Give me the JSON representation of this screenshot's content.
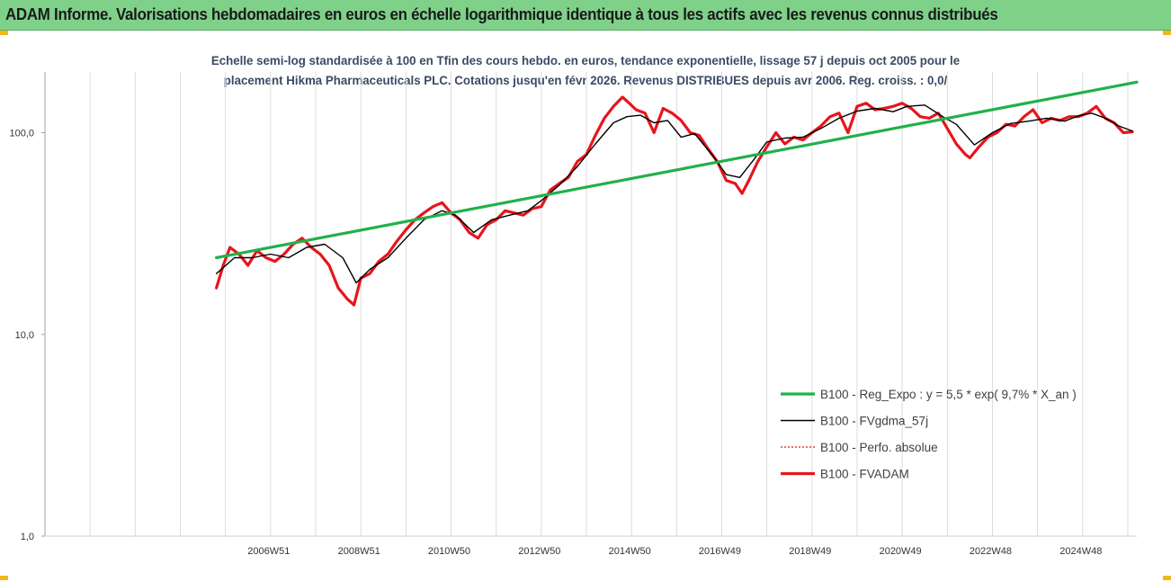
{
  "banner": {
    "title": "ADAM Informe. Valorisations hebdomadaires en euros en échelle logarithmique identique à tous les actifs avec les revenus connus distribués"
  },
  "colors": {
    "banner_bg": "#7fd18a",
    "accent_corner": "#f2b81a",
    "subtitle_text": "#3b4a66"
  },
  "chart_data": {
    "type": "line",
    "title_line1": "Echelle semi-log standardisée à 100 en Tfin des cours hebdo. en euros, tendance exponentielle, lissage 57 j depuis oct 2005 pour le",
    "title_line2": "placement Hikma Pharmaceuticals PLC. Cotations jusqu'en févr 2026.  Revenus DISTRIBUES depuis avr 2006. Reg. croiss. : 0,0/",
    "y_scale": "log",
    "ylim": [
      1,
      200
    ],
    "y_ticks": [
      "1,0",
      "10,0",
      "100,0"
    ],
    "y_tick_values": [
      1,
      10,
      100
    ],
    "x_range": [
      2002.0,
      2026.2
    ],
    "x_ticks": [
      "2006W51",
      "2008W51",
      "2010W50",
      "2012W50",
      "2014W50",
      "2016W49",
      "2018W49",
      "2020W49",
      "2022W48",
      "2024W48"
    ],
    "x_tick_values": [
      2006.96,
      2008.96,
      2010.96,
      2012.96,
      2014.96,
      2016.96,
      2018.96,
      2020.96,
      2022.96,
      2024.96
    ],
    "grid_vertical": true,
    "legend_position": "right",
    "series": [
      {
        "name": "B100 - Reg_Expo : y = 5,5 * exp( 9,7% *  X_an )",
        "color": "#22b04a",
        "style": "thick",
        "x": [
          2005.8,
          2026.2
        ],
        "y": [
          24,
          178
        ]
      },
      {
        "name": "B100 - FVgdma_57j",
        "color": "#000000",
        "style": "thin",
        "x": [
          2005.8,
          2006.2,
          2006.6,
          2007.0,
          2007.4,
          2007.8,
          2008.2,
          2008.6,
          2008.9,
          2009.2,
          2009.6,
          2010.0,
          2010.4,
          2010.8,
          2011.1,
          2011.5,
          2011.9,
          2012.3,
          2012.7,
          2013.0,
          2013.4,
          2013.8,
          2014.2,
          2014.6,
          2014.9,
          2015.2,
          2015.5,
          2015.8,
          2016.1,
          2016.4,
          2016.8,
          2017.1,
          2017.4,
          2017.7,
          2018.0,
          2018.4,
          2018.8,
          2019.2,
          2019.6,
          2020.0,
          2020.4,
          2020.8,
          2021.1,
          2021.5,
          2021.9,
          2022.2,
          2022.6,
          2023.0,
          2023.4,
          2023.8,
          2024.2,
          2024.6,
          2024.9,
          2025.2,
          2025.5,
          2025.8,
          2026.1
        ],
        "y": [
          20,
          24,
          24,
          25,
          24,
          27,
          28,
          24,
          18,
          21,
          24,
          30,
          37,
          41,
          39,
          32,
          37,
          39,
          41,
          46,
          55,
          68,
          88,
          112,
          120,
          122,
          112,
          115,
          95,
          99,
          77,
          62,
          60,
          73,
          90,
          94,
          95,
          105,
          118,
          128,
          132,
          127,
          135,
          137,
          120,
          110,
          87,
          100,
          111,
          114,
          118,
          114,
          121,
          125,
          118,
          108,
          102
        ]
      },
      {
        "name": "B100 - Perfo. absolue",
        "color": "#e0141c",
        "style": "dotted",
        "x": [],
        "y": []
      },
      {
        "name": "B100 - FVADAM",
        "color": "#e8141c",
        "style": "thick",
        "x": [
          2005.8,
          2005.95,
          2006.1,
          2006.3,
          2006.5,
          2006.7,
          2006.9,
          2007.1,
          2007.3,
          2007.5,
          2007.7,
          2007.9,
          2008.1,
          2008.3,
          2008.5,
          2008.7,
          2008.85,
          2009.0,
          2009.2,
          2009.4,
          2009.6,
          2009.8,
          2010.0,
          2010.2,
          2010.4,
          2010.6,
          2010.8,
          2011.0,
          2011.2,
          2011.4,
          2011.6,
          2011.8,
          2012.0,
          2012.2,
          2012.4,
          2012.6,
          2012.8,
          2013.0,
          2013.2,
          2013.4,
          2013.6,
          2013.8,
          2014.0,
          2014.2,
          2014.4,
          2014.6,
          2014.8,
          2014.95,
          2015.1,
          2015.3,
          2015.5,
          2015.7,
          2015.9,
          2016.1,
          2016.3,
          2016.5,
          2016.7,
          2016.9,
          2017.1,
          2017.3,
          2017.45,
          2017.6,
          2017.8,
          2018.0,
          2018.2,
          2018.4,
          2018.6,
          2018.8,
          2019.0,
          2019.2,
          2019.4,
          2019.6,
          2019.8,
          2020.0,
          2020.2,
          2020.4,
          2020.6,
          2020.8,
          2021.0,
          2021.2,
          2021.4,
          2021.6,
          2021.8,
          2022.0,
          2022.2,
          2022.4,
          2022.5,
          2022.7,
          2022.9,
          2023.1,
          2023.3,
          2023.5,
          2023.7,
          2023.9,
          2024.1,
          2024.3,
          2024.5,
          2024.7,
          2024.9,
          2025.1,
          2025.3,
          2025.5,
          2025.7,
          2025.9,
          2026.1
        ],
        "y": [
          17,
          22,
          27,
          25,
          22,
          26,
          24,
          23,
          25,
          28,
          30,
          27,
          25,
          22,
          17,
          15,
          14,
          19,
          20,
          23,
          25,
          29,
          33,
          37,
          40,
          43,
          45,
          40,
          37,
          32,
          30,
          35,
          37,
          41,
          40,
          39,
          42,
          43,
          52,
          56,
          60,
          72,
          78,
          97,
          118,
          135,
          150,
          140,
          130,
          125,
          100,
          132,
          125,
          115,
          100,
          97,
          83,
          72,
          58,
          56,
          50,
          58,
          72,
          85,
          100,
          88,
          95,
          92,
          100,
          108,
          120,
          125,
          100,
          135,
          140,
          130,
          132,
          135,
          140,
          132,
          120,
          118,
          125,
          105,
          88,
          78,
          75,
          85,
          95,
          100,
          110,
          108,
          120,
          130,
          112,
          118,
          115,
          120,
          120,
          125,
          135,
          118,
          112,
          100,
          101
        ]
      }
    ]
  }
}
